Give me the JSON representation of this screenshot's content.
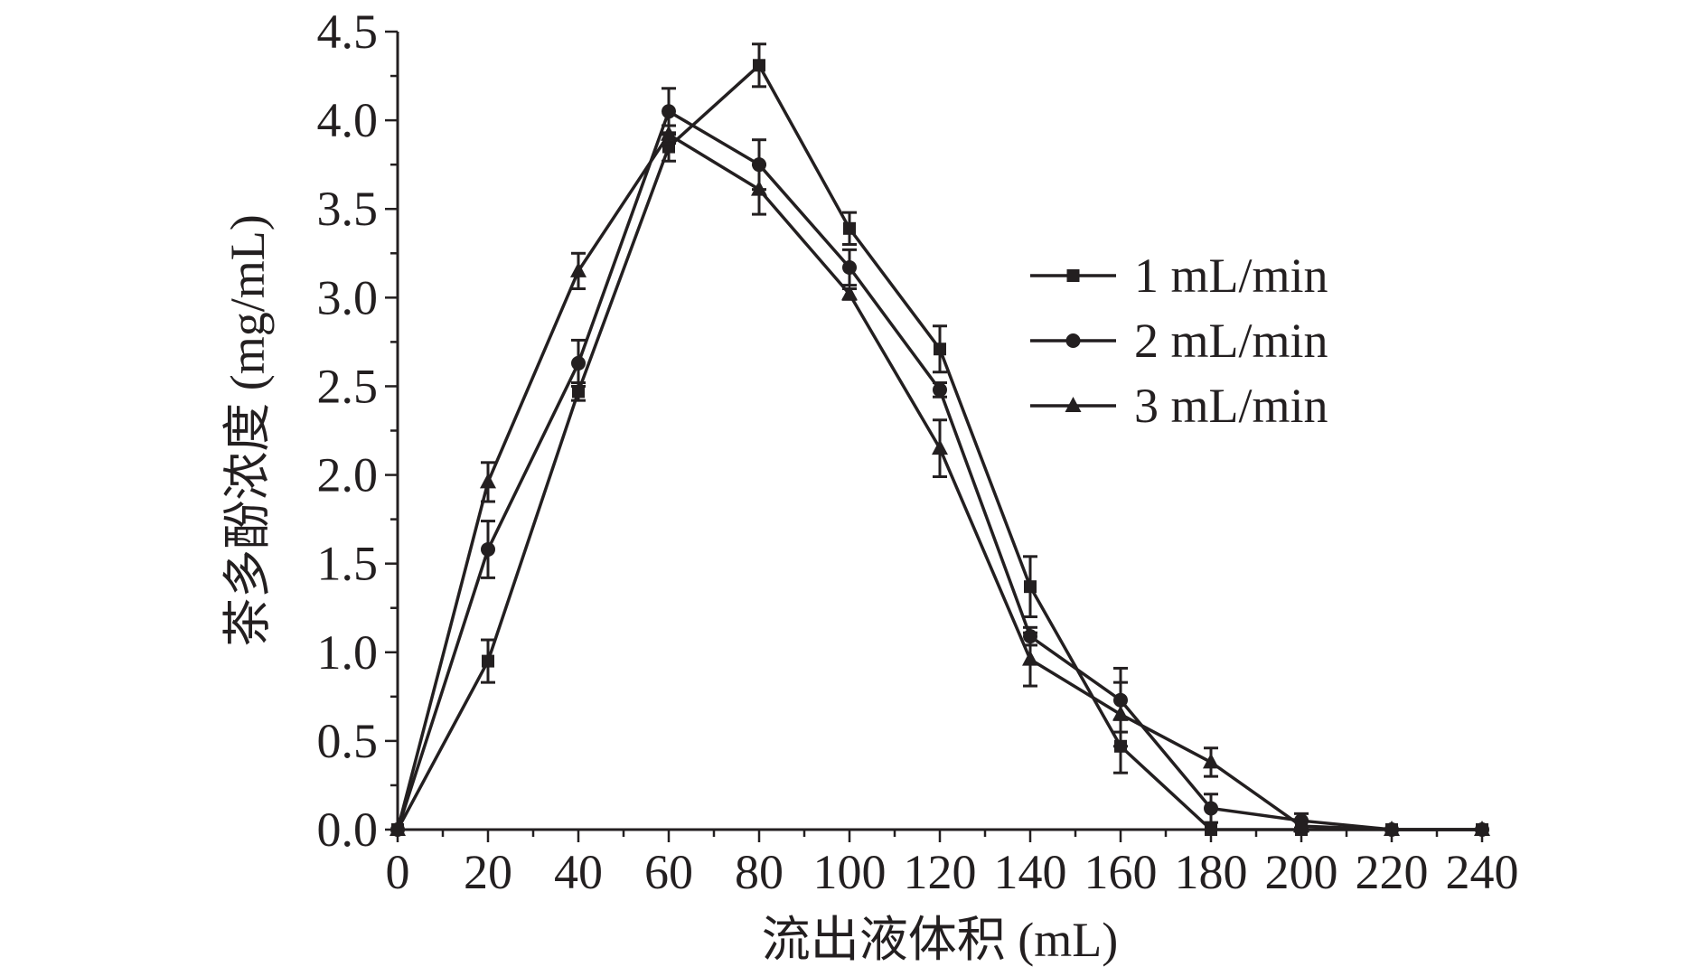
{
  "chart_data": {
    "type": "line",
    "title": "",
    "xlabel": "流出液体积 (mL)",
    "ylabel": "茶多酚浓度 (mg/mL)",
    "xlim": [
      0,
      240
    ],
    "ylim": [
      0,
      4.5
    ],
    "x_ticks": [
      "0",
      "20",
      "40",
      "60",
      "80",
      "100",
      "120",
      "140",
      "160",
      "180",
      "200",
      "220",
      "240"
    ],
    "y_ticks": [
      "0.0",
      "0.5",
      "1.0",
      "1.5",
      "2.0",
      "2.5",
      "3.0",
      "3.5",
      "4.0",
      "4.5"
    ],
    "x": [
      0,
      20,
      40,
      60,
      80,
      100,
      120,
      140,
      160,
      180,
      200,
      220,
      240
    ],
    "legend_position": "right",
    "grid": false,
    "series": [
      {
        "name": "1 mL/min",
        "marker": "square",
        "values": [
          0.0,
          0.95,
          2.47,
          3.85,
          4.31,
          3.39,
          2.71,
          1.37,
          0.47,
          0.0,
          0.0,
          0.0,
          0.0
        ],
        "errors": [
          0.0,
          0.12,
          0.05,
          0.08,
          0.12,
          0.09,
          0.13,
          0.17,
          0.15,
          0.0,
          0.0,
          0.0,
          0.0
        ]
      },
      {
        "name": "2 mL/min",
        "marker": "circle",
        "values": [
          0.0,
          1.58,
          2.63,
          4.05,
          3.75,
          3.17,
          2.48,
          1.09,
          0.73,
          0.12,
          0.05,
          0.0,
          0.0
        ],
        "errors": [
          0.0,
          0.16,
          0.13,
          0.13,
          0.14,
          0.1,
          0.04,
          0.05,
          0.18,
          0.08,
          0.04,
          0.0,
          0.0
        ]
      },
      {
        "name": "3 mL/min",
        "marker": "triangle",
        "values": [
          0.0,
          1.96,
          3.15,
          3.92,
          3.61,
          3.02,
          2.15,
          0.96,
          0.65,
          0.38,
          0.02,
          0.0,
          0.0
        ],
        "errors": [
          0.0,
          0.11,
          0.1,
          0.05,
          0.14,
          0.03,
          0.16,
          0.15,
          0.18,
          0.08,
          0.03,
          0.0,
          0.0
        ]
      }
    ]
  }
}
